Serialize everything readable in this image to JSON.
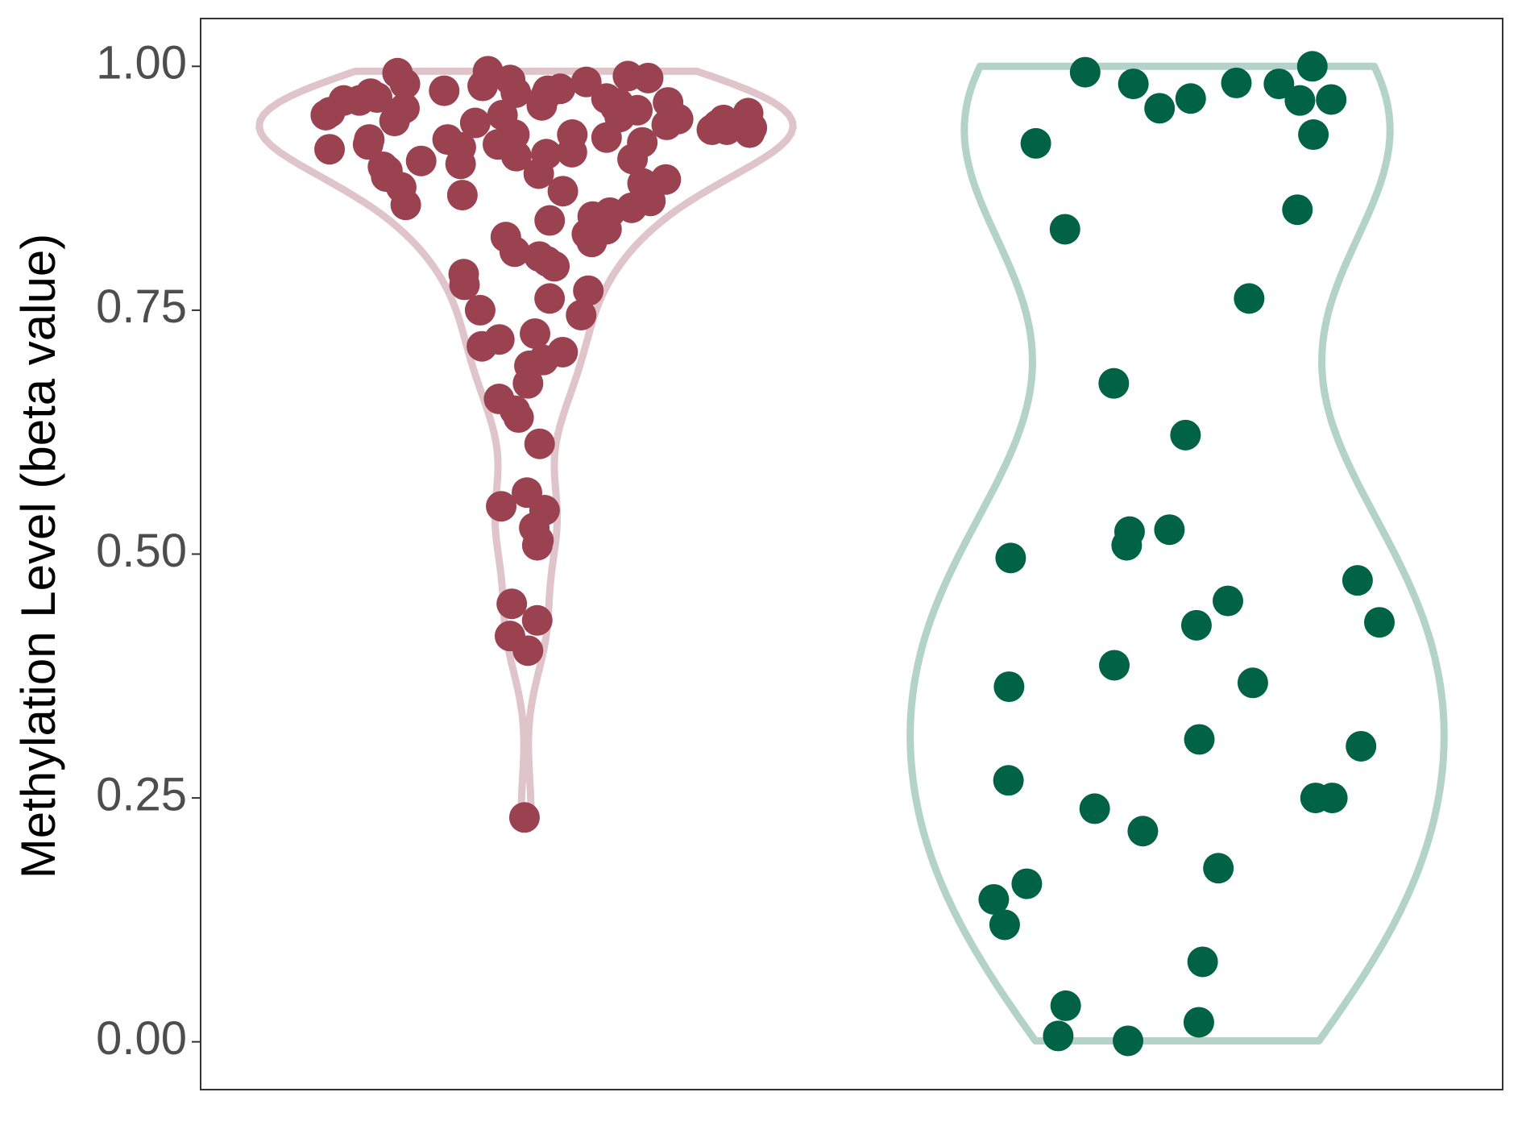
{
  "chart_data": {
    "type": "violin",
    "ylabel": "Methylation Level (beta value)",
    "ylim": [
      -0.049,
      1.049
    ],
    "yticks": [
      {
        "value": 0,
        "label": "0.00"
      },
      {
        "value": 0.25,
        "label": "0.25"
      },
      {
        "value": 0.5,
        "label": "0.50"
      },
      {
        "value": 0.75,
        "label": "0.75"
      },
      {
        "value": 1,
        "label": "1.00"
      }
    ],
    "grid": false,
    "series": [
      {
        "color": "#9a4250",
        "outline_color": "#e0c4cb",
        "values": [
          0.23,
          0.401,
          0.416,
          0.432,
          0.449,
          0.514,
          0.509,
          0.527,
          0.549,
          0.563,
          0.545,
          0.613,
          0.64,
          0.647,
          0.659,
          0.675,
          0.693,
          0.699,
          0.707,
          0.713,
          0.72,
          0.726,
          0.745,
          0.75,
          0.762,
          0.77,
          0.776,
          0.787,
          0.795,
          0.8,
          0.805,
          0.81,
          0.82,
          0.825,
          0.828,
          0.833,
          0.838,
          0.842,
          0.846,
          0.85,
          0.855,
          0.858,
          0.862,
          0.868,
          0.872,
          0.876,
          0.88,
          0.884,
          0.887,
          0.89,
          0.893,
          0.897,
          0.9,
          0.903,
          0.905,
          0.908,
          0.912,
          0.915,
          0.917,
          0.92,
          0.922,
          0.925,
          0.927,
          0.93,
          0.932,
          0.935,
          0.937,
          0.94,
          0.942,
          0.944,
          0.946,
          0.948,
          0.95,
          0.952,
          0.953,
          0.955,
          0.957,
          0.958,
          0.96,
          0.962,
          0.963,
          0.965,
          0.967,
          0.968,
          0.97,
          0.972,
          0.973,
          0.975,
          0.977,
          0.98,
          0.982,
          0.984,
          0.986,
          0.988,
          0.99,
          0.993,
          0.995,
          0.93,
          0.945,
          0.96,
          0.92,
          0.935,
          0.95,
          0.965,
          0.975,
          0.91,
          0.925,
          0.94
        ]
      },
      {
        "color": "#006344",
        "outline_color": "#b3d3c8",
        "values": [
          0.982,
          0.965,
          0.994,
          0.966,
          0.93,
          0.853,
          0.921,
          0.983,
          0.967,
          0.957,
          1.0,
          0.982,
          0.833,
          0.762,
          0.675,
          0.622,
          0.523,
          0.496,
          0.509,
          0.525,
          0.473,
          0.452,
          0.427,
          0.43,
          0.386,
          0.368,
          0.364,
          0.31,
          0.303,
          0.268,
          0.25,
          0.25,
          0.239,
          0.216,
          0.178,
          0.162,
          0.146,
          0.12,
          0.082,
          0.037,
          0.02,
          0.006,
          0.001
        ]
      }
    ]
  }
}
